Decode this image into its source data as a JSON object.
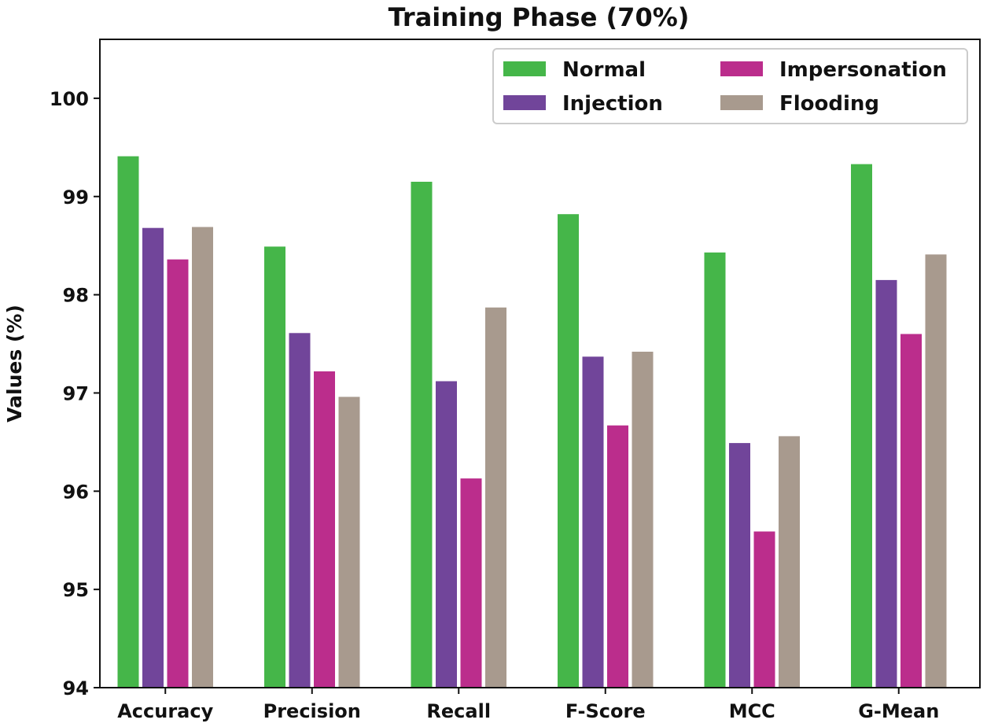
{
  "chart_data": {
    "type": "bar",
    "title": "Training Phase (70%)",
    "xlabel": "",
    "ylabel": "Values (%)",
    "ylim": [
      94,
      100.6
    ],
    "yticks": [
      "94",
      "95",
      "96",
      "97",
      "98",
      "99",
      "100"
    ],
    "grid": false,
    "legend_position": "top-right",
    "categories": [
      "Accuracy",
      "Precision",
      "Recall",
      "F-Score",
      "MCC",
      "G-Mean"
    ],
    "series": [
      {
        "name": "Normal",
        "color": "#45b649",
        "values": [
          99.41,
          98.49,
          99.15,
          98.82,
          98.43,
          99.33
        ]
      },
      {
        "name": "Injection",
        "color": "#71459a",
        "values": [
          98.68,
          97.61,
          97.12,
          97.37,
          96.49,
          98.15
        ]
      },
      {
        "name": "Impersonation",
        "color": "#bb2d8c",
        "values": [
          98.36,
          97.22,
          96.13,
          96.67,
          95.59,
          97.6
        ]
      },
      {
        "name": "Flooding",
        "color": "#a89a8e",
        "values": [
          98.69,
          96.96,
          97.87,
          97.42,
          96.56,
          98.41
        ]
      }
    ]
  }
}
